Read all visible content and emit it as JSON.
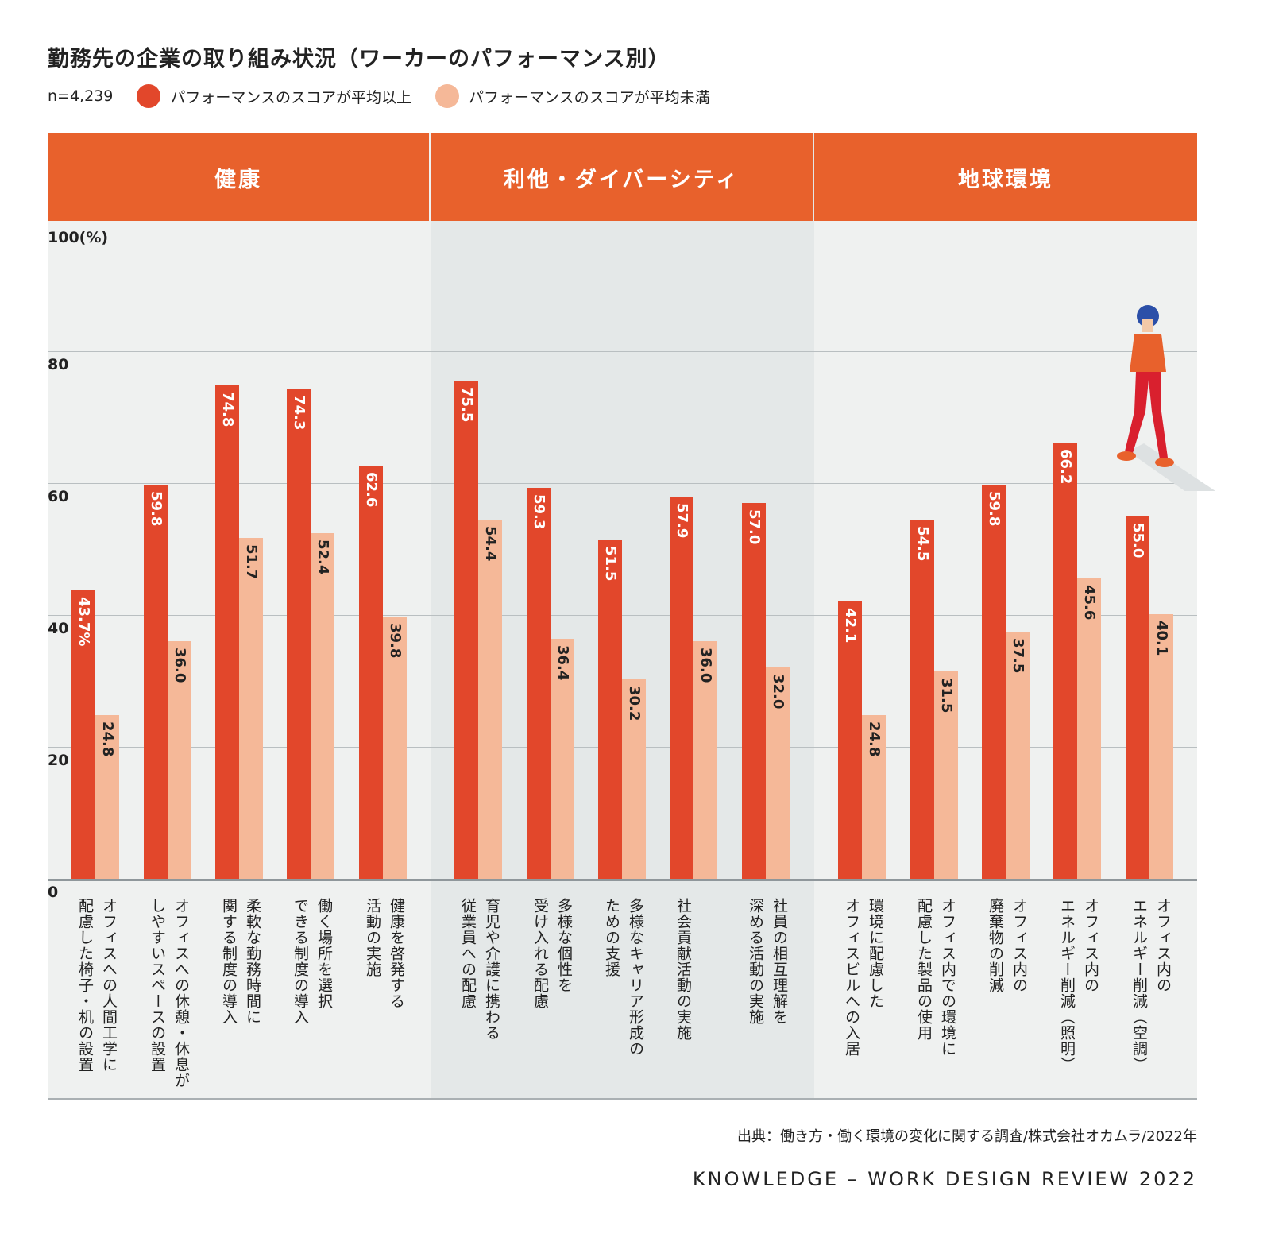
{
  "chart_data": {
    "type": "bar",
    "title": "勤務先の企業の取り組み状況（ワーカーのパフォーマンス別）",
    "n_label": "n=4,239",
    "ylabel": "100(%)",
    "ylim": [
      0,
      100
    ],
    "yticks": [
      {
        "v": 100,
        "label": "100(%)"
      },
      {
        "v": 80,
        "label": "80"
      },
      {
        "v": 60,
        "label": "60"
      },
      {
        "v": 40,
        "label": "40"
      },
      {
        "v": 20,
        "label": "20"
      },
      {
        "v": 0,
        "label": "0"
      }
    ],
    "colors": {
      "above": "#e2472b",
      "below": "#f5b898",
      "header": "#e8612c"
    },
    "legend": [
      "パフォーマンスのスコアが平均以上",
      "パフォーマンスのスコアが平均未満"
    ],
    "sections": [
      {
        "name": "健康",
        "categories": [
          "オフィスへの人間工学に\n配慮した椅子・机の設置",
          "オフィスへの休憩・休息が\nしやすいスペースの設置",
          "柔軟な勤務時間に\n関する制度の導入",
          "働く場所を選択\nできる制度の導入",
          "健康を啓発する\n活動の実施"
        ],
        "above": [
          43.7,
          59.8,
          74.8,
          74.3,
          62.6
        ],
        "below": [
          24.8,
          36.0,
          51.7,
          52.4,
          39.8
        ],
        "above_labels": [
          "43.7%",
          "59.8",
          "74.8",
          "74.3",
          "62.6"
        ],
        "below_labels": [
          "24.8",
          "36.0",
          "51.7",
          "52.4",
          "39.8"
        ]
      },
      {
        "name": "利他・ダイバーシティ",
        "categories": [
          "育児や介護に携わる\n従業員への配慮",
          "多様な個性を\n受け入れる配慮",
          "多様なキャリア形成の\nための支援",
          "社会貢献活動の実施",
          "社員の相互理解を\n深める活動の実施"
        ],
        "above": [
          75.5,
          59.3,
          51.5,
          57.9,
          57.0
        ],
        "below": [
          54.4,
          36.4,
          30.2,
          36.0,
          32.0
        ],
        "above_labels": [
          "75.5",
          "59.3",
          "51.5",
          "57.9",
          "57.0"
        ],
        "below_labels": [
          "54.4",
          "36.4",
          "30.2",
          "36.0",
          "32.0"
        ]
      },
      {
        "name": "地球環境",
        "categories": [
          "環境に配慮した\nオフィスビルへの入居",
          "オフィス内での環境に\n配慮した製品の使用",
          "オフィス内の\n廃棄物の削減",
          "オフィス内の\nエネルギー削減（照明）",
          "オフィス内の\nエネルギー削減（空調）"
        ],
        "above": [
          42.1,
          54.5,
          59.8,
          66.2,
          55.0
        ],
        "below": [
          24.8,
          31.5,
          37.5,
          45.6,
          40.1
        ],
        "above_labels": [
          "42.1",
          "54.5",
          "59.8",
          "66.2",
          "55.0"
        ],
        "below_labels": [
          "24.8",
          "31.5",
          "37.5",
          "45.6",
          "40.1"
        ]
      }
    ],
    "source": "出典：働き方・働く環境の変化に関する調査/株式会社オカムラ/2022年",
    "brand": "KNOWLEDGE – WORK DESIGN REVIEW 2022"
  }
}
